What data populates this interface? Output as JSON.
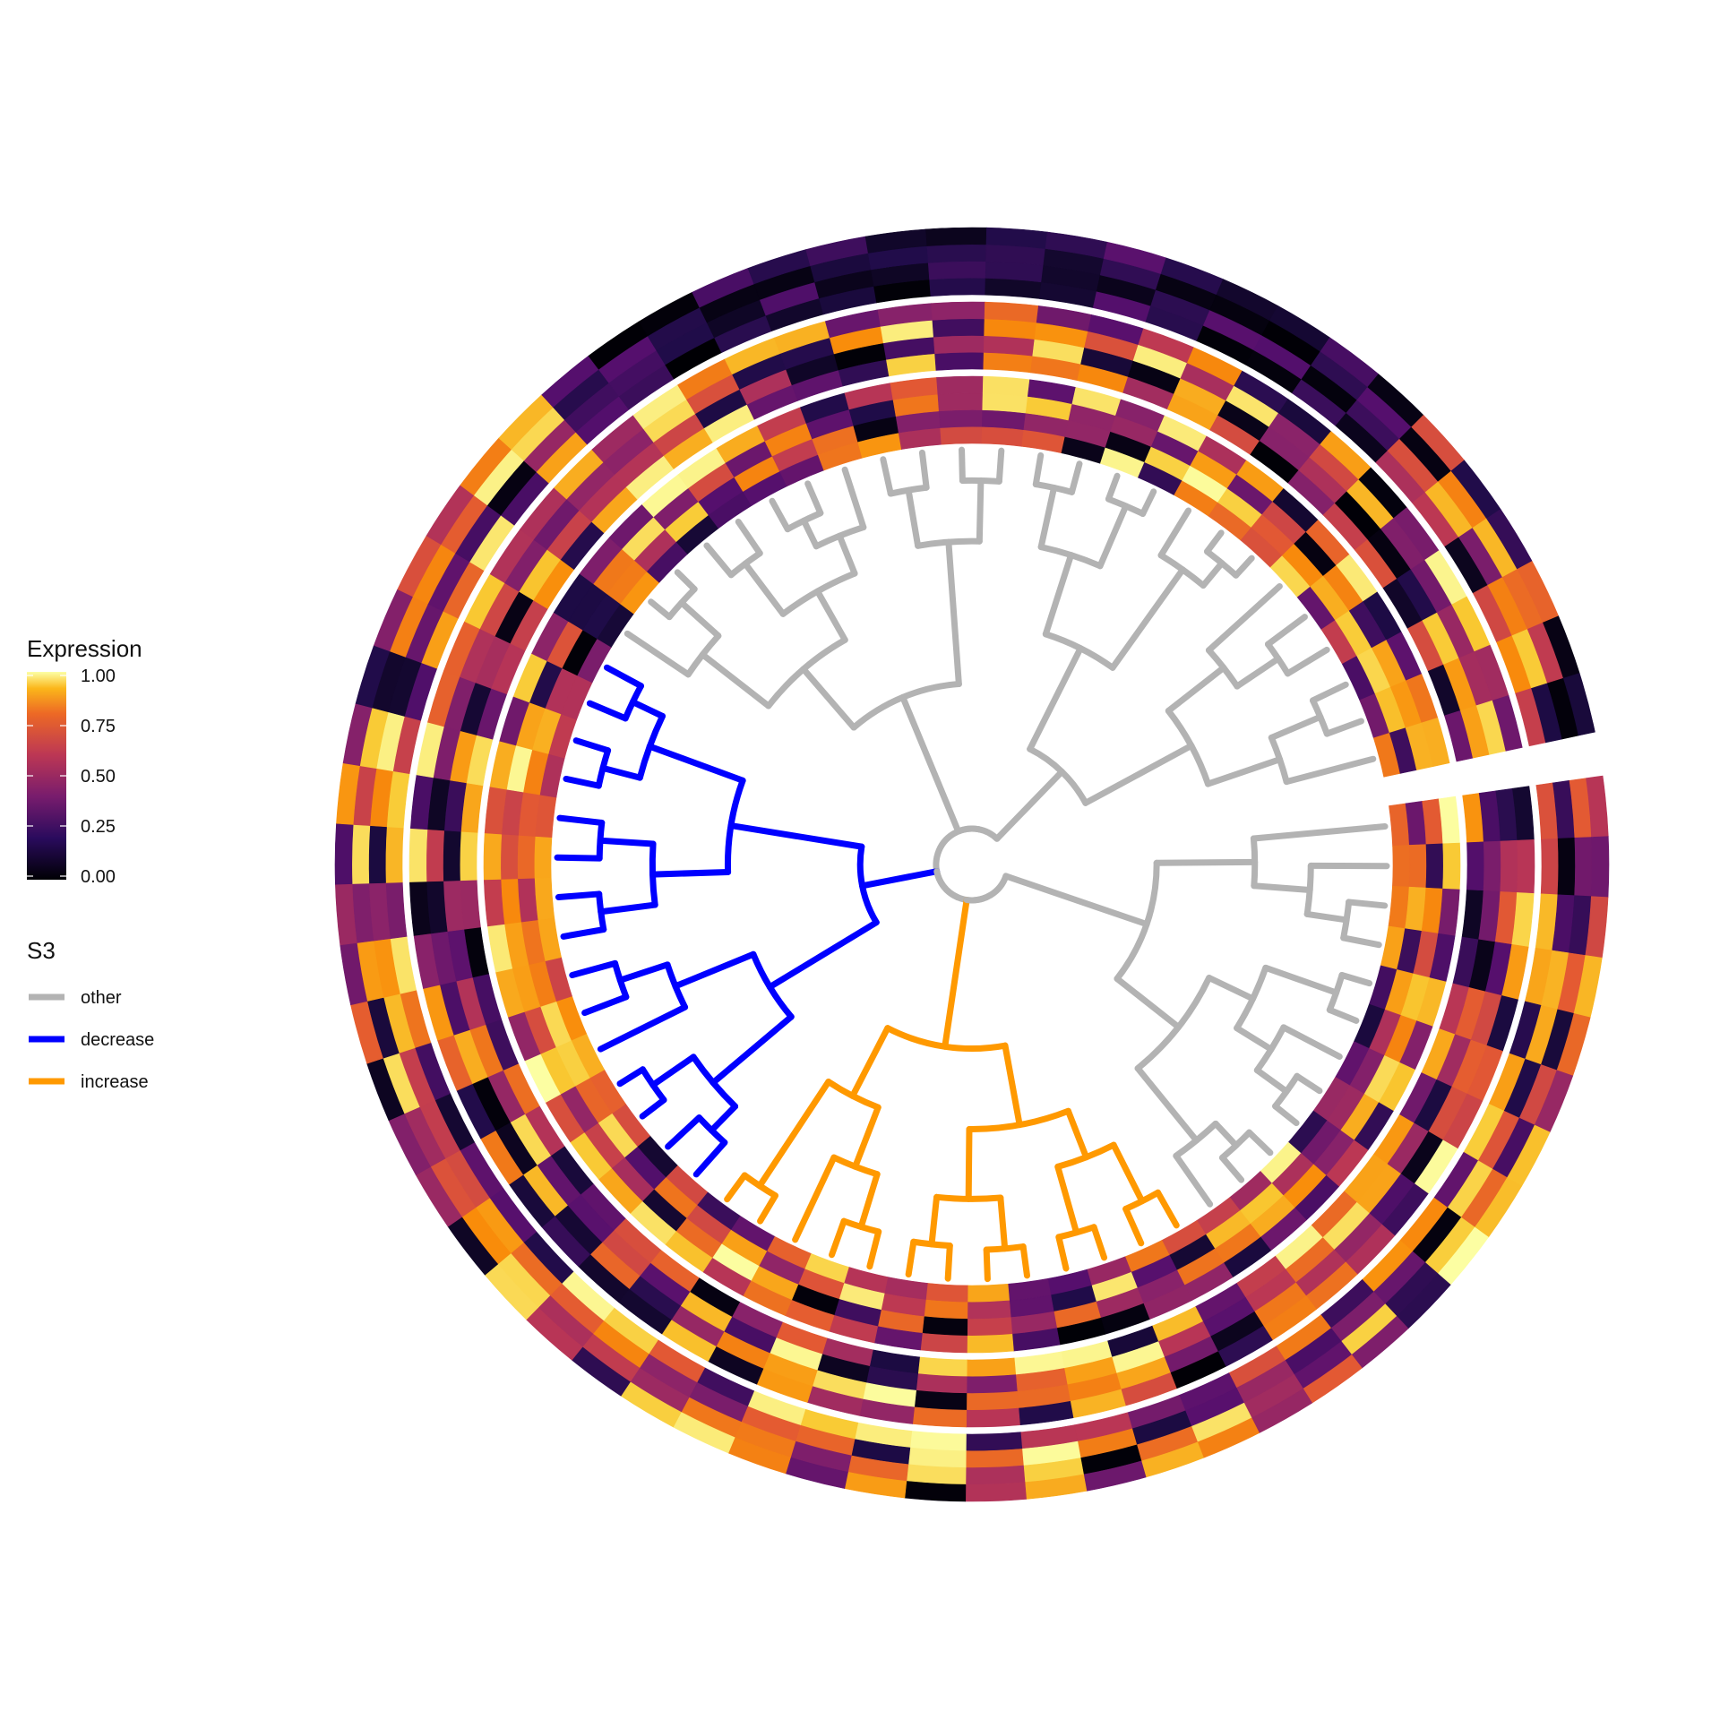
{
  "chart_data": {
    "type": "heatmap",
    "layout": "circular dendrogram with concentric heatmap rings",
    "title": "",
    "xlabel": "",
    "ylabel": "",
    "tip_count": 65,
    "ring_count": 3,
    "rows_per_ring": 4,
    "heatmap_scale": {
      "name": "Expression",
      "palette": "inferno",
      "range": [
        0,
        1
      ],
      "ticks": [
        "0.00",
        "0.25",
        "0.50",
        "0.75",
        "1.00"
      ]
    },
    "branch_legend": {
      "name": "S3",
      "items": [
        {
          "label": "other",
          "color": "#B3B3B3"
        },
        {
          "label": "decrease",
          "color": "#0000FF"
        },
        {
          "label": "increase",
          "color": "#FF9900"
        }
      ]
    },
    "clades": {
      "decrease_tips": [
        25,
        39
      ],
      "increase_tips": [
        12,
        26
      ]
    },
    "legend_position": "left",
    "grid": false
  }
}
